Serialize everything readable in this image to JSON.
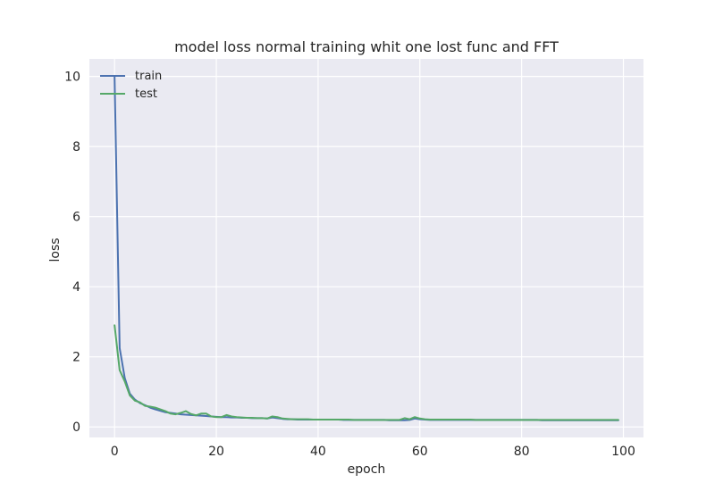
{
  "chart_data": {
    "type": "line",
    "title": "model loss normal training whit one lost func and FFT",
    "xlabel": "epoch",
    "ylabel": "loss",
    "xlim": [
      -4.95,
      103.95
    ],
    "ylim": [
      -0.3,
      10.5
    ],
    "xticks": [
      0,
      20,
      40,
      60,
      80,
      100
    ],
    "yticks": [
      0,
      2,
      4,
      6,
      8,
      10
    ],
    "grid": true,
    "legend_position": "upper-left",
    "series": [
      {
        "name": "train",
        "color": "#4c72b0",
        "x": [
          0,
          1,
          2,
          3,
          4,
          5,
          6,
          7,
          8,
          9,
          10,
          11,
          12,
          13,
          14,
          15,
          16,
          17,
          18,
          19,
          20,
          21,
          22,
          23,
          24,
          25,
          26,
          27,
          28,
          29,
          30,
          31,
          32,
          33,
          34,
          35,
          36,
          37,
          38,
          39,
          40,
          41,
          42,
          43,
          44,
          45,
          46,
          47,
          48,
          49,
          50,
          51,
          52,
          53,
          54,
          55,
          56,
          57,
          58,
          59,
          60,
          61,
          62,
          63,
          64,
          65,
          66,
          67,
          68,
          69,
          70,
          71,
          72,
          73,
          74,
          75,
          76,
          77,
          78,
          79,
          80,
          81,
          82,
          83,
          84,
          85,
          86,
          87,
          88,
          89,
          90,
          91,
          92,
          93,
          94,
          95,
          96,
          97,
          98,
          99
        ],
        "values": [
          10.0,
          2.25,
          1.4,
          0.95,
          0.78,
          0.68,
          0.62,
          0.55,
          0.5,
          0.46,
          0.42,
          0.4,
          0.38,
          0.36,
          0.35,
          0.34,
          0.33,
          0.32,
          0.31,
          0.3,
          0.29,
          0.28,
          0.28,
          0.27,
          0.27,
          0.26,
          0.26,
          0.25,
          0.25,
          0.25,
          0.24,
          0.27,
          0.25,
          0.23,
          0.22,
          0.22,
          0.21,
          0.21,
          0.21,
          0.21,
          0.21,
          0.21,
          0.21,
          0.21,
          0.21,
          0.2,
          0.2,
          0.2,
          0.2,
          0.2,
          0.2,
          0.2,
          0.2,
          0.2,
          0.19,
          0.19,
          0.19,
          0.19,
          0.2,
          0.24,
          0.22,
          0.21,
          0.2,
          0.2,
          0.2,
          0.2,
          0.2,
          0.2,
          0.2,
          0.2,
          0.2,
          0.2,
          0.2,
          0.2,
          0.2,
          0.2,
          0.2,
          0.2,
          0.2,
          0.2,
          0.2,
          0.2,
          0.2,
          0.2,
          0.19,
          0.19,
          0.19,
          0.19,
          0.19,
          0.19,
          0.19,
          0.19,
          0.19,
          0.19,
          0.19,
          0.19,
          0.19,
          0.19,
          0.19,
          0.19
        ]
      },
      {
        "name": "test",
        "color": "#55a868",
        "x": [
          0,
          1,
          2,
          3,
          4,
          5,
          6,
          7,
          8,
          9,
          10,
          11,
          12,
          13,
          14,
          15,
          16,
          17,
          18,
          19,
          20,
          21,
          22,
          23,
          24,
          25,
          26,
          27,
          28,
          29,
          30,
          31,
          32,
          33,
          34,
          35,
          36,
          37,
          38,
          39,
          40,
          41,
          42,
          43,
          44,
          45,
          46,
          47,
          48,
          49,
          50,
          51,
          52,
          53,
          54,
          55,
          56,
          57,
          58,
          59,
          60,
          61,
          62,
          63,
          64,
          65,
          66,
          67,
          68,
          69,
          70,
          71,
          72,
          73,
          74,
          75,
          76,
          77,
          78,
          79,
          80,
          81,
          82,
          83,
          84,
          85,
          86,
          87,
          88,
          89,
          90,
          91,
          92,
          93,
          94,
          95,
          96,
          97,
          98,
          99
        ],
        "values": [
          2.9,
          1.62,
          1.3,
          0.9,
          0.75,
          0.7,
          0.6,
          0.58,
          0.55,
          0.5,
          0.45,
          0.38,
          0.36,
          0.4,
          0.45,
          0.37,
          0.33,
          0.38,
          0.38,
          0.3,
          0.28,
          0.28,
          0.34,
          0.3,
          0.28,
          0.27,
          0.26,
          0.26,
          0.25,
          0.25,
          0.24,
          0.3,
          0.28,
          0.24,
          0.23,
          0.22,
          0.22,
          0.22,
          0.22,
          0.21,
          0.21,
          0.21,
          0.21,
          0.21,
          0.21,
          0.21,
          0.21,
          0.2,
          0.2,
          0.2,
          0.2,
          0.2,
          0.2,
          0.2,
          0.2,
          0.2,
          0.2,
          0.25,
          0.22,
          0.28,
          0.24,
          0.22,
          0.21,
          0.21,
          0.21,
          0.21,
          0.21,
          0.21,
          0.21,
          0.21,
          0.21,
          0.2,
          0.2,
          0.2,
          0.2,
          0.2,
          0.2,
          0.2,
          0.2,
          0.2,
          0.2,
          0.2,
          0.2,
          0.2,
          0.2,
          0.2,
          0.2,
          0.2,
          0.2,
          0.2,
          0.2,
          0.2,
          0.2,
          0.2,
          0.2,
          0.2,
          0.2,
          0.2,
          0.2,
          0.2
        ]
      }
    ]
  }
}
